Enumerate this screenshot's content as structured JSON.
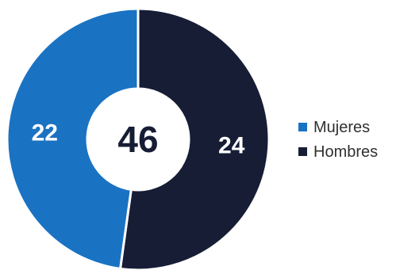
{
  "chart_data": {
    "type": "pie",
    "donut": true,
    "center_total": "46",
    "categories": [
      "Mujeres",
      "Hombres"
    ],
    "values": [
      22,
      24
    ],
    "colors": [
      "#1a72c3",
      "#161d35"
    ],
    "legend_position": "right",
    "start_angle_deg": 0,
    "direction": "clockwise",
    "slice_order": [
      "Hombres",
      "Mujeres"
    ]
  },
  "legend": {
    "items": [
      {
        "label": "Mujeres",
        "color": "#1a72c3"
      },
      {
        "label": "Hombres",
        "color": "#161d35"
      }
    ]
  }
}
